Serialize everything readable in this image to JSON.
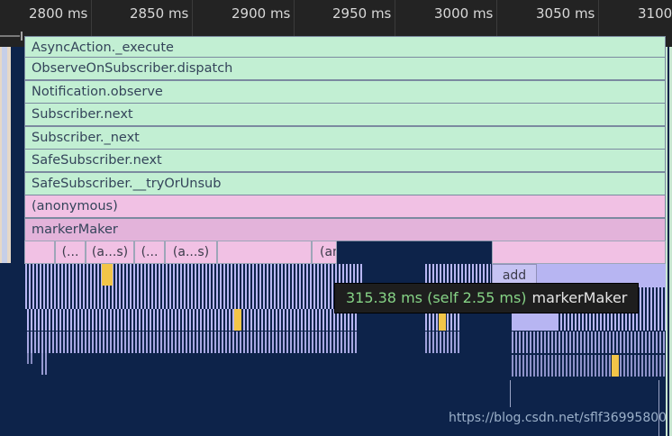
{
  "ruler": {
    "ticks": [
      "2800 ms",
      "2850 ms",
      "2900 ms",
      "2950 ms",
      "3000 ms",
      "3050 ms",
      "3100"
    ]
  },
  "flame": {
    "frames": [
      "AsyncAction._execute",
      "ObserveOnSubscriber.dispatch",
      "Notification.observe",
      "Subscriber.next",
      "Subscriber._next",
      "SafeSubscriber.next",
      "SafeSubscriber.__tryOrUnsub",
      "(anonymous)",
      "markerMaker"
    ],
    "children": [
      "(...",
      "(a...s)",
      "(...",
      "(a...s)",
      "(an"
    ],
    "add_label": "add"
  },
  "tooltip": {
    "time": "315.38 ms (self 2.55 ms)",
    "name": "markerMaker"
  },
  "watermark": "https://blog.csdn.net/sflf36995800",
  "colors": {
    "ruler_bg": "#232323",
    "flame_bg": "#0d234a",
    "js_frame": "#c2efd3",
    "anon_frame": "#f1c1e4",
    "marker_frame": "#e3b3da",
    "gc_frame": "#b7b5f2",
    "highlight": "#f3c548",
    "tooltip_time": "#86d386"
  }
}
